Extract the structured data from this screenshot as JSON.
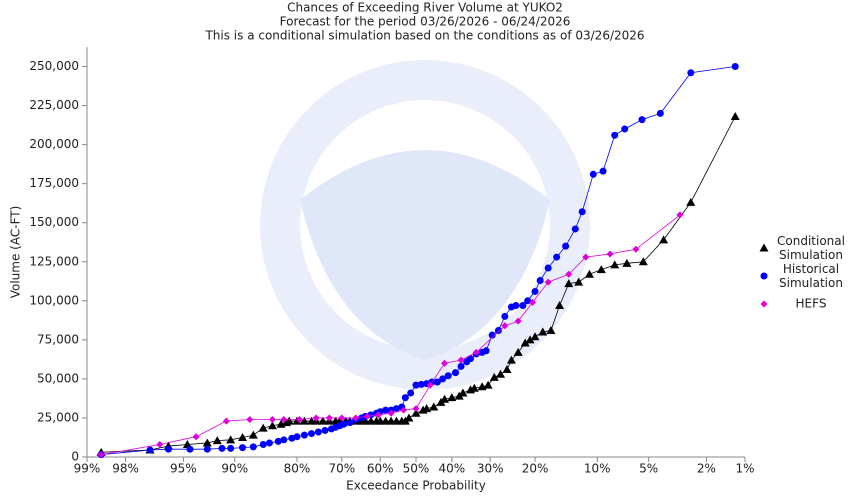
{
  "chart_data": {
    "type": "scatter",
    "title": "Chances of Exceeding River Volume at YUKO2",
    "subtitle": "Forecast for the period 03/26/2026 - 06/24/2026",
    "note": "This is a conditional simulation based on the conditions as of 03/26/2026",
    "x_label": "Exceedance Probability",
    "y_label": "Volume (AC-FT)",
    "x_scale": "normal-probability",
    "xlim": [
      99,
      1
    ],
    "xticks": [
      {
        "value": 99,
        "label": "99%"
      },
      {
        "value": 98,
        "label": "98%"
      },
      {
        "value": 95,
        "label": "95%"
      },
      {
        "value": 90,
        "label": "90%"
      },
      {
        "value": 80,
        "label": "80%"
      },
      {
        "value": 70,
        "label": "70%"
      },
      {
        "value": 60,
        "label": "60%"
      },
      {
        "value": 50,
        "label": "50%"
      },
      {
        "value": 40,
        "label": "40%"
      },
      {
        "value": 30,
        "label": "30%"
      },
      {
        "value": 20,
        "label": "20%"
      },
      {
        "value": 10,
        "label": "10%"
      },
      {
        "value": 5,
        "label": "5%"
      },
      {
        "value": 2,
        "label": "2%"
      },
      {
        "value": 1,
        "label": "1%"
      }
    ],
    "ylim": [
      0,
      262500
    ],
    "yticks": [
      0,
      {
        "value": 25000,
        "label": "25,000"
      },
      {
        "value": 50000,
        "label": "50,000"
      },
      {
        "value": 75000,
        "label": "75,000"
      },
      {
        "value": 100000,
        "label": "100,000"
      },
      {
        "value": 125000,
        "label": "125,000"
      },
      {
        "value": 150000,
        "label": "150,000"
      },
      {
        "value": 175000,
        "label": "175,000"
      },
      {
        "value": 200000,
        "label": "200,000"
      },
      {
        "value": 225000,
        "label": "225,000"
      },
      {
        "value": 250000,
        "label": "250,000"
      }
    ],
    "legend": "right",
    "series": [
      {
        "name": "Conditional Simulation",
        "color": "#000000",
        "marker": "triangle",
        "x": [
          98.7,
          97,
          96,
          94.7,
          93,
          92,
          90.5,
          89,
          87.5,
          86,
          84.5,
          83,
          82,
          81.5,
          80,
          78.5,
          77,
          76,
          74.5,
          73,
          71.5,
          70.5,
          69,
          68,
          66.5,
          65,
          64,
          62.5,
          61,
          60,
          58.5,
          57,
          55.5,
          54,
          53,
          52,
          50,
          48,
          47,
          45,
          43,
          42,
          40,
          38,
          37,
          35,
          34,
          32,
          30.5,
          29,
          27.5,
          26,
          25,
          23.5,
          22,
          21,
          20,
          18.5,
          17,
          15.5,
          14,
          12.5,
          11,
          9.5,
          8,
          6.8,
          5.4,
          4,
          2.6,
          1.2
        ],
        "values": [
          3000,
          4500,
          7000,
          8000,
          9000,
          10500,
          11000,
          12500,
          14000,
          18500,
          20000,
          21000,
          22000,
          23000,
          23000,
          23000,
          23000,
          23000,
          23000,
          23000,
          23000,
          23000,
          23000,
          23000,
          23000,
          23000,
          23000,
          23000,
          23000,
          23000,
          23000,
          23000,
          23000,
          23000,
          23000,
          25000,
          28000,
          30000,
          31000,
          32000,
          35000,
          37000,
          38000,
          39000,
          41000,
          43000,
          44000,
          45000,
          46000,
          51000,
          53000,
          56000,
          62000,
          67000,
          73000,
          75000,
          77000,
          80000,
          81000,
          97000,
          111000,
          112000,
          117000,
          120000,
          123000,
          124000,
          125000,
          139000,
          163000,
          218000
        ]
      },
      {
        "name": "Historical Simulation",
        "color": "#0000ff",
        "marker": "circle",
        "x": [
          98.7,
          97,
          96,
          94.5,
          93,
          91.5,
          90.5,
          89,
          87.5,
          86,
          85,
          83.5,
          82.5,
          81,
          80,
          78.5,
          77,
          75.5,
          74,
          72.5,
          71.5,
          70.5,
          69.5,
          68,
          66.5,
          65,
          64,
          62.5,
          61,
          60,
          58.5,
          57,
          55.5,
          54,
          53,
          51.5,
          50,
          48.5,
          47,
          45.5,
          44,
          42.5,
          41,
          39,
          37.5,
          36,
          35,
          33.5,
          32,
          31,
          29.5,
          28,
          26.5,
          25,
          24,
          22.5,
          21.5,
          20,
          19,
          17.5,
          16,
          14.5,
          13,
          12,
          10.5,
          9.3,
          8,
          7,
          5.5,
          4.2,
          2.6,
          1.2
        ],
        "values": [
          1500,
          4500,
          5000,
          5000,
          5000,
          5500,
          5500,
          6000,
          6500,
          8000,
          9000,
          10000,
          11000,
          12000,
          13000,
          14000,
          15000,
          16000,
          17000,
          18000,
          19000,
          20000,
          21000,
          22000,
          24000,
          25000,
          26000,
          27000,
          28000,
          29000,
          30000,
          30000,
          31000,
          32000,
          38000,
          41000,
          46000,
          46500,
          47000,
          48000,
          48000,
          50000,
          52000,
          54000,
          58000,
          61000,
          63000,
          66000,
          67000,
          68000,
          78000,
          81000,
          90000,
          96000,
          97000,
          97000,
          100000,
          106000,
          113000,
          121000,
          128000,
          135000,
          146000,
          157000,
          181000,
          183000,
          206000,
          210000,
          216000,
          220000,
          246000,
          250000
        ]
      },
      {
        "name": "HEFS",
        "color": "#dd00dd",
        "marker": "diamond",
        "x": [
          98.7,
          96.5,
          94,
          91,
          88,
          84.5,
          82.5,
          79.5,
          76,
          73,
          70,
          66.5,
          63.5,
          60.5,
          57,
          53.5,
          50,
          46,
          42,
          37.5,
          33.5,
          26.5,
          23.5,
          20.5,
          17.5,
          14,
          11.5,
          8.5,
          6,
          3.1
        ],
        "values": [
          1500,
          8000,
          13000,
          23000,
          24000,
          24000,
          24000,
          24000,
          25000,
          25000,
          25000,
          25000,
          26000,
          27000,
          28000,
          30000,
          31000,
          46000,
          60000,
          62000,
          67000,
          84000,
          87000,
          99000,
          112000,
          117000,
          128000,
          130000,
          133000,
          155000
        ]
      }
    ]
  }
}
